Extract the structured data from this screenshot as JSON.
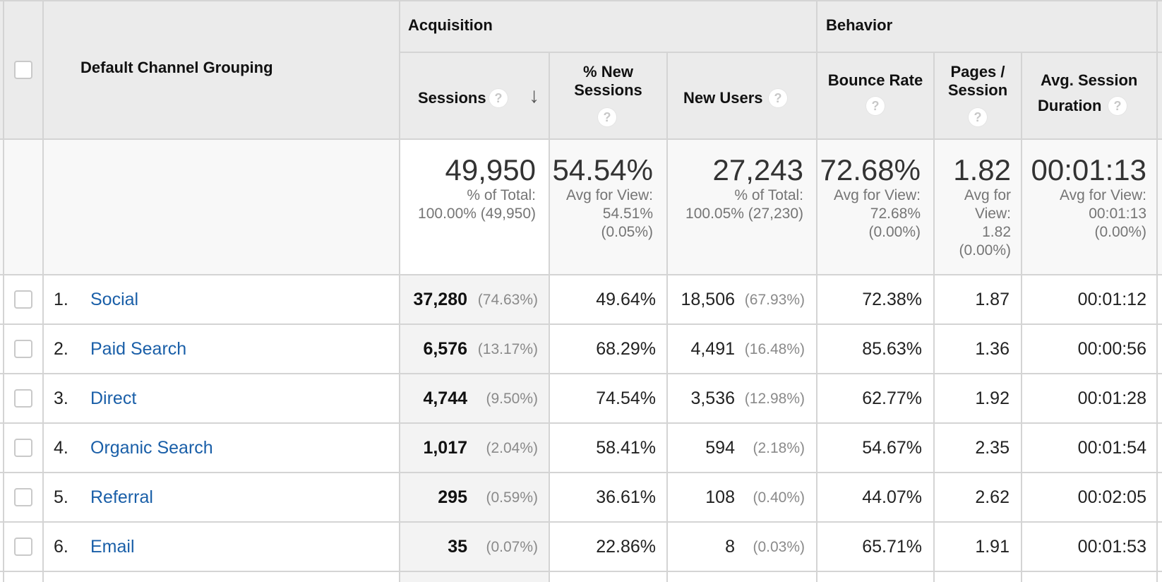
{
  "header": {
    "dimension_label": "Default Channel Grouping",
    "acquisition_label": "Acquisition",
    "behavior_label": "Behavior",
    "columns": {
      "sessions": "Sessions",
      "pct_new_line1": "% New",
      "pct_new_line2": "Sessions",
      "new_users": "New Users",
      "bounce_rate": "Bounce Rate",
      "pages_line1": "Pages /",
      "pages_line2": "Session",
      "avg_line1": "Avg. Session",
      "avg_line2": "Duration"
    },
    "help_glyph": "?",
    "sort_glyph": "↓"
  },
  "totals": {
    "sessions": {
      "value": "49,950",
      "line1": "% of Total:",
      "line2": "100.00% (49,950)"
    },
    "pct_new": {
      "value": "54.54%",
      "line1": "Avg for View:",
      "line2": "54.51%",
      "line3": "(0.05%)"
    },
    "new_users": {
      "value": "27,243",
      "line1": "% of Total:",
      "line2": "100.05% (27,230)"
    },
    "bounce": {
      "value": "72.68%",
      "line1": "Avg for View:",
      "line2": "72.68%",
      "line3": "(0.00%)"
    },
    "pages": {
      "value": "1.82",
      "line1": "Avg for",
      "line2": "View:",
      "line3": "1.82",
      "line4": "(0.00%)"
    },
    "duration": {
      "value": "00:01:13",
      "line1": "Avg for View:",
      "line2": "00:01:13",
      "line3": "(0.00%)"
    }
  },
  "rows": [
    {
      "num": "1.",
      "channel": "Social",
      "sessions": "37,280",
      "sessions_pct": "(74.63%)",
      "pct_new": "49.64%",
      "new_users": "18,506",
      "new_users_pct": "(67.93%)",
      "bounce": "72.38%",
      "pages": "1.87",
      "duration": "00:01:12"
    },
    {
      "num": "2.",
      "channel": "Paid Search",
      "sessions": "6,576",
      "sessions_pct": "(13.17%)",
      "pct_new": "68.29%",
      "new_users": "4,491",
      "new_users_pct": "(16.48%)",
      "bounce": "85.63%",
      "pages": "1.36",
      "duration": "00:00:56"
    },
    {
      "num": "3.",
      "channel": "Direct",
      "sessions": "4,744",
      "sessions_pct": "(9.50%)",
      "pct_new": "74.54%",
      "new_users": "3,536",
      "new_users_pct": "(12.98%)",
      "bounce": "62.77%",
      "pages": "1.92",
      "duration": "00:01:28"
    },
    {
      "num": "4.",
      "channel": "Organic Search",
      "sessions": "1,017",
      "sessions_pct": "(2.04%)",
      "pct_new": "58.41%",
      "new_users": "594",
      "new_users_pct": "(2.18%)",
      "bounce": "54.67%",
      "pages": "2.35",
      "duration": "00:01:54"
    },
    {
      "num": "5.",
      "channel": "Referral",
      "sessions": "295",
      "sessions_pct": "(0.59%)",
      "pct_new": "36.61%",
      "new_users": "108",
      "new_users_pct": "(0.40%)",
      "bounce": "44.07%",
      "pages": "2.62",
      "duration": "00:02:05"
    },
    {
      "num": "6.",
      "channel": "Email",
      "sessions": "35",
      "sessions_pct": "(0.07%)",
      "pct_new": "22.86%",
      "new_users": "8",
      "new_users_pct": "(0.03%)",
      "bounce": "65.71%",
      "pages": "1.91",
      "duration": "00:01:53"
    }
  ]
}
